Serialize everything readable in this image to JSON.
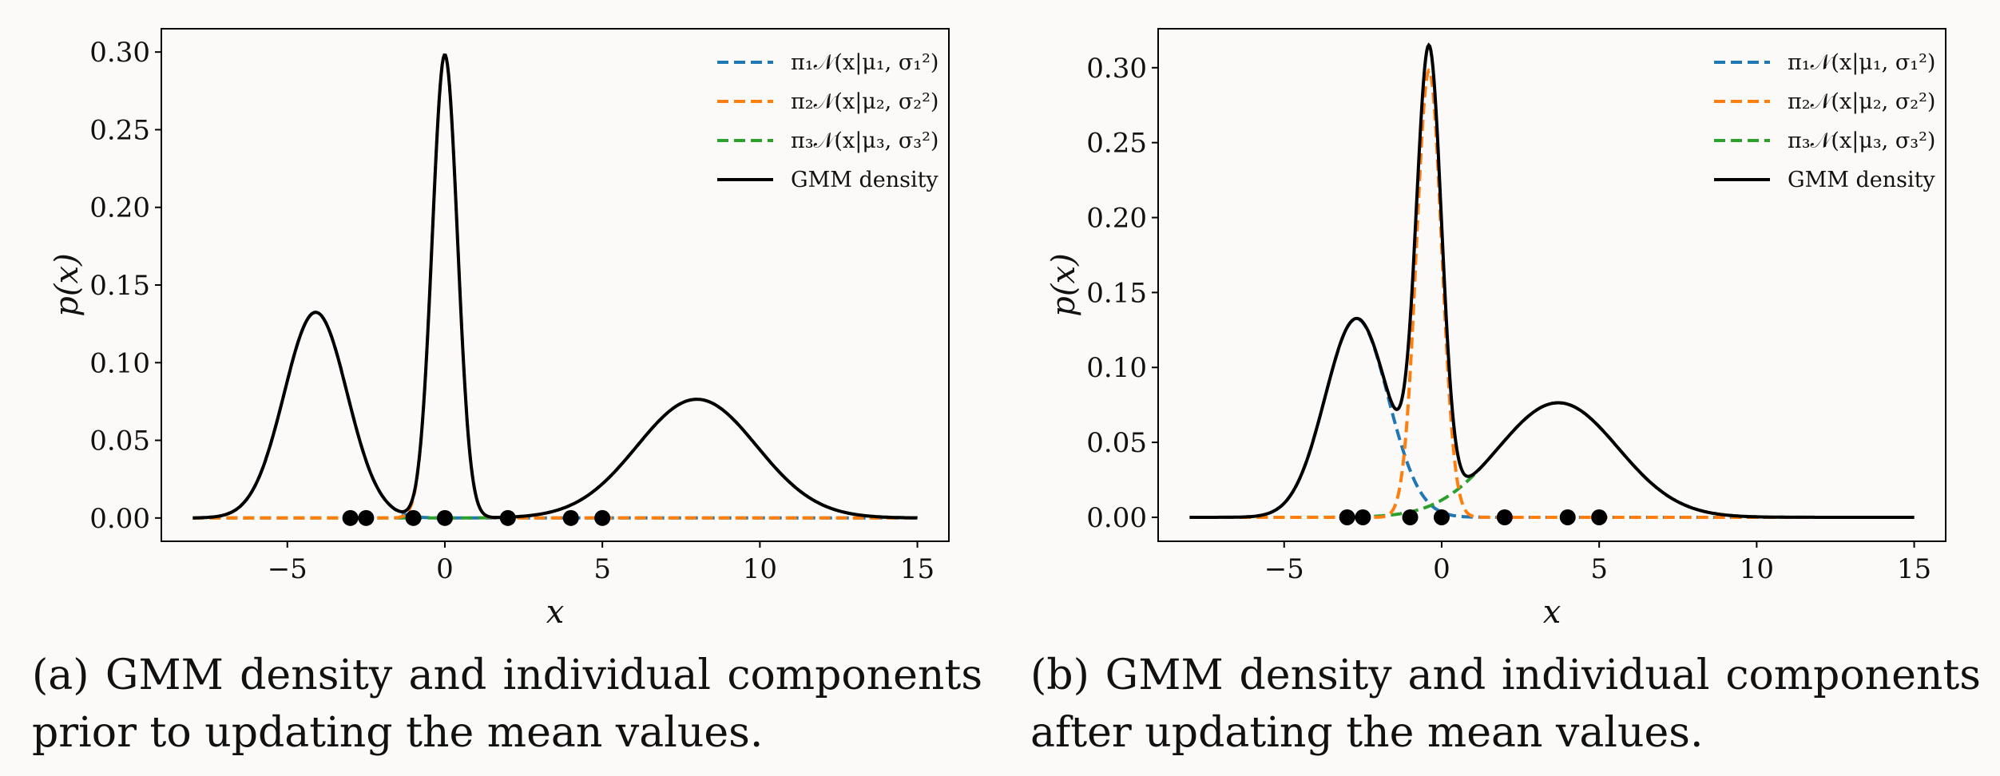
{
  "chart_data": [
    {
      "type": "line",
      "panel": "a",
      "xlabel": "x",
      "ylabel": "p(x)",
      "xlim": [
        -9,
        16
      ],
      "ylim": [
        -0.015,
        0.315
      ],
      "xticks": [
        -5,
        0,
        5,
        10,
        15
      ],
      "xtick_labels": [
        "−5",
        "0",
        "5",
        "10",
        "15"
      ],
      "yticks": [
        0.0,
        0.05,
        0.1,
        0.15,
        0.2,
        0.25,
        0.3
      ],
      "ytick_labels": [
        "0.00",
        "0.05",
        "0.10",
        "0.15",
        "0.20",
        "0.25",
        "0.30"
      ],
      "x_range": [
        -8,
        15
      ],
      "components": [
        {
          "name": "π₁𝒩(x|μ₁, σ₁²)",
          "color": "#1f77b4",
          "mean": -4.1,
          "sd": 1.0,
          "weight": 0.332
        },
        {
          "name": "π₂𝒩(x|μ₂, σ₂²)",
          "color": "#ff7f0e",
          "mean": 0.0,
          "sd": 0.4,
          "weight": 0.299
        },
        {
          "name": "π₃𝒩(x|μ₃, σ₃²)",
          "color": "#2ca02c",
          "mean": 8.0,
          "sd": 1.9,
          "weight": 0.364
        }
      ],
      "draw_order": [
        0,
        2,
        1
      ],
      "density": {
        "name": "GMM density",
        "color": "#000000"
      },
      "points": [
        -3,
        -2.5,
        -1,
        0,
        2,
        4,
        5
      ],
      "legend_location": "top-right"
    },
    {
      "type": "line",
      "panel": "b",
      "xlabel": "x",
      "ylabel": "p(x)",
      "xlim": [
        -9,
        16
      ],
      "ylim": [
        -0.016,
        0.326
      ],
      "xticks": [
        -5,
        0,
        5,
        10,
        15
      ],
      "xtick_labels": [
        "−5",
        "0",
        "5",
        "10",
        "15"
      ],
      "yticks": [
        0.0,
        0.05,
        0.1,
        0.15,
        0.2,
        0.25,
        0.3
      ],
      "ytick_labels": [
        "0.00",
        "0.05",
        "0.10",
        "0.15",
        "0.20",
        "0.25",
        "0.30"
      ],
      "x_range": [
        -8,
        15
      ],
      "components": [
        {
          "name": "π₁𝒩(x|μ₁, σ₁²)",
          "color": "#1f77b4",
          "mean": -2.7,
          "sd": 1.0,
          "weight": 0.332
        },
        {
          "name": "π₂𝒩(x|μ₂, σ₂²)",
          "color": "#ff7f0e",
          "mean": -0.4,
          "sd": 0.4,
          "weight": 0.299
        },
        {
          "name": "π₃𝒩(x|μ₃, σ₃²)",
          "color": "#2ca02c",
          "mean": 3.7,
          "sd": 1.9,
          "weight": 0.364
        }
      ],
      "draw_order": [
        0,
        2,
        1
      ],
      "density": {
        "name": "GMM density",
        "color": "#000000"
      },
      "points": [
        -3,
        -2.5,
        -1,
        0,
        2,
        4,
        5
      ],
      "legend_location": "top-right"
    }
  ],
  "captions": {
    "a": "(a) GMM density and individual components prior to updating the mean values.",
    "b": "(b) GMM density and individual components after updating the mean values."
  }
}
